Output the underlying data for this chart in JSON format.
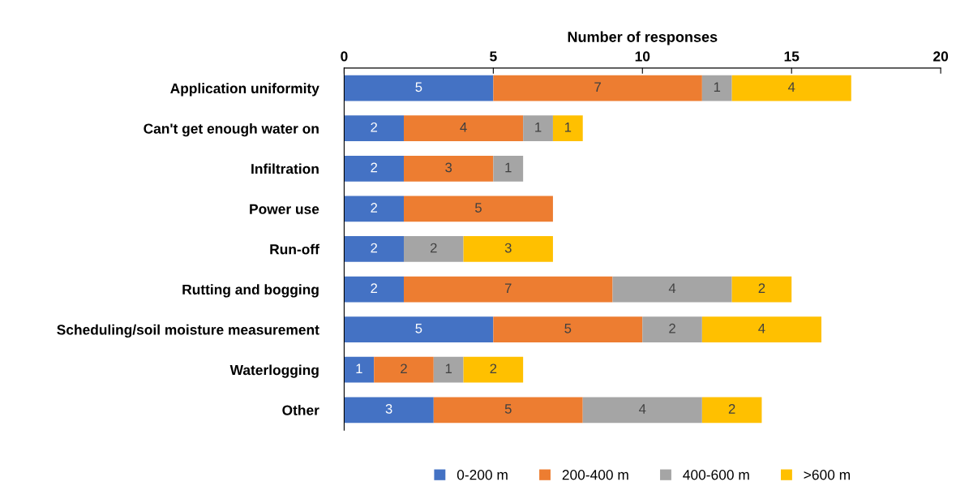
{
  "chart_data": {
    "type": "bar",
    "orientation": "horizontal",
    "stacked": true,
    "xlabel": "Number of responses",
    "categories": [
      "Application uniformity",
      "Can't get enough water on",
      "Infiltration",
      "Power use",
      "Run-off",
      "Rutting and bogging",
      "Scheduling/soil moisture measurement",
      "Waterlogging",
      "Other"
    ],
    "series": [
      {
        "name": "0-200 m",
        "color": "#4472c4",
        "values": [
          5,
          2,
          2,
          2,
          2,
          2,
          5,
          1,
          3
        ]
      },
      {
        "name": "200-400 m",
        "color": "#ed7d31",
        "values": [
          7,
          4,
          3,
          5,
          null,
          7,
          5,
          2,
          5
        ]
      },
      {
        "name": "400-600 m",
        "color": "#a5a5a5",
        "values": [
          1,
          1,
          1,
          null,
          2,
          4,
          2,
          1,
          4
        ]
      },
      {
        "name": ">600 m",
        "color": "#ffc000",
        "values": [
          4,
          1,
          null,
          null,
          3,
          2,
          4,
          2,
          2
        ]
      }
    ],
    "xlim": [
      0,
      20
    ],
    "xticks": [
      0,
      5,
      10,
      15,
      20
    ],
    "grid": false,
    "legend": "bottom",
    "data_labels": true
  }
}
